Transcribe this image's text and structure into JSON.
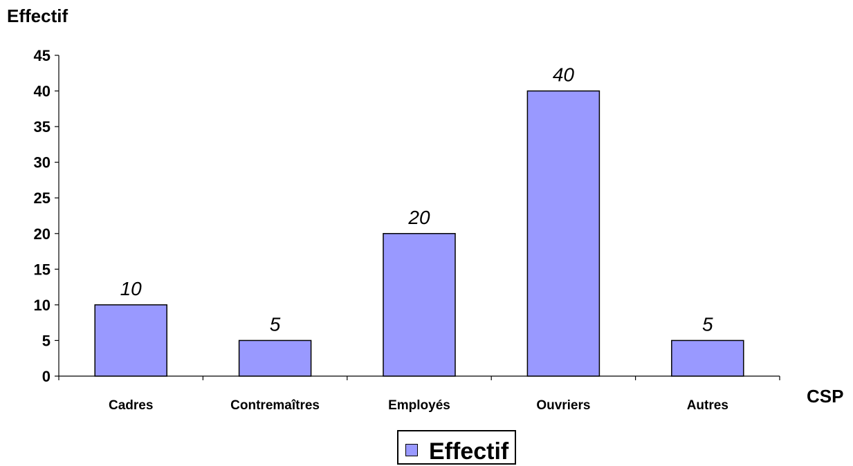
{
  "chart_data": {
    "type": "bar",
    "categories": [
      "Cadres",
      "Contremaîtres",
      "Employés",
      "Ouvriers",
      "Autres"
    ],
    "series": [
      {
        "name": "Effectif",
        "values": [
          10,
          5,
          20,
          40,
          5
        ]
      }
    ],
    "data_labels": [
      "10",
      "5",
      "20",
      "40",
      "5"
    ],
    "y_ticks": [
      0,
      5,
      10,
      15,
      20,
      25,
      30,
      35,
      40,
      45
    ],
    "ylim": [
      0,
      45
    ],
    "ylabel": "Effectif",
    "xlabel": "CSP",
    "legend": {
      "position": "bottom",
      "entries": [
        "Effectif"
      ]
    },
    "grid": false,
    "bar_color": "#9999ff",
    "bar_edge_color": "#000000"
  }
}
